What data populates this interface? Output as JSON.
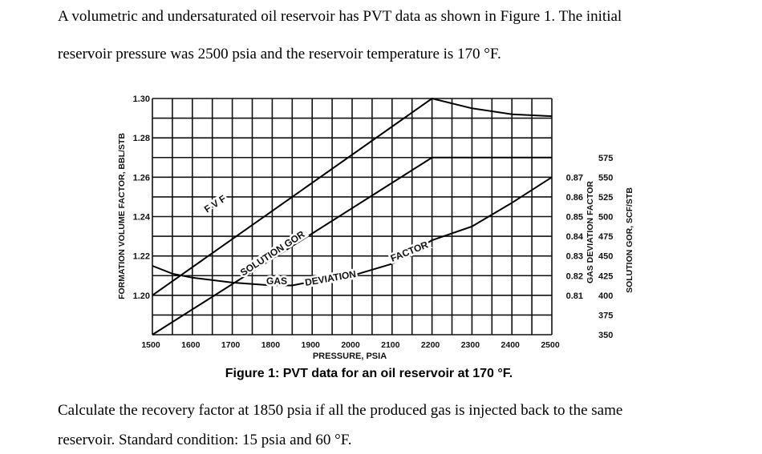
{
  "text": {
    "line1": "A volumetric and undersaturated oil reservoir has PVT data as shown in Figure 1. The initial",
    "line2": "reservoir pressure was 2500 psia and the reservoir temperature is 170 °F.",
    "caption": "Figure 1: PVT data for an oil reservoir at 170 °F.",
    "line3": "Calculate the recovery factor at 1850 psia if all the produced gas is injected back to the same",
    "line4": "reservoir. Standard condition: 15 psia and 60 °F."
  },
  "chart_data": {
    "type": "line",
    "title": "",
    "xlabel": "PRESSURE, PSIA",
    "ylabel": "FORMATION VOLUME FACTOR, BBL/STB",
    "y2label": "GAS DEVIATION FACTOR",
    "y3label": "SOLUTION GOR, SCF/STB",
    "xlim": [
      1500,
      2500
    ],
    "ylim": [
      1.18,
      1.3
    ],
    "y2lim": [
      0.79,
      0.91
    ],
    "y3lim": [
      350,
      650
    ],
    "grid": true,
    "x_ticks": [
      "1500",
      "1600",
      "1700",
      "1800",
      "1900",
      "2000",
      "2100",
      "2200",
      "2300",
      "2400",
      "2500"
    ],
    "y_ticks": [
      "1.20",
      "1.22",
      "1.24",
      "1.26",
      "1.28",
      "1.30"
    ],
    "y2_ticks": [
      "0.81",
      "0.82",
      "0.83",
      "0.84",
      "0.85",
      "0.86",
      "0.87"
    ],
    "y3_ticks": [
      "350",
      "375",
      "400",
      "425",
      "450",
      "475",
      "500",
      "525",
      "550",
      "575"
    ],
    "series": [
      {
        "name": "FVF",
        "axis": "left",
        "x": [
          1500,
          2200,
          2300,
          2400,
          2500
        ],
        "y": [
          1.2,
          1.3,
          1.295,
          1.292,
          1.291
        ]
      },
      {
        "name": "SOLUTION GOR",
        "axis": "gor",
        "x": [
          1500,
          2200,
          2500
        ],
        "y": [
          350,
          575,
          575
        ]
      },
      {
        "name": "GAS DEVIATION FACTOR",
        "axis": "z",
        "x": [
          1500,
          1550,
          1600,
          1700,
          1800,
          1850,
          1900,
          2000,
          2100,
          2200,
          2300,
          2400,
          2500
        ],
        "y": [
          0.825,
          0.821,
          0.819,
          0.8165,
          0.815,
          0.815,
          0.817,
          0.82,
          0.826,
          0.838,
          0.845,
          0.857,
          0.87
        ]
      }
    ],
    "curve_labels": {
      "fvf": "F V F",
      "gor": "SOLUTION GOR",
      "z1": "GAS",
      "z2": "DEVIATION",
      "z3": "FACTOR"
    }
  }
}
